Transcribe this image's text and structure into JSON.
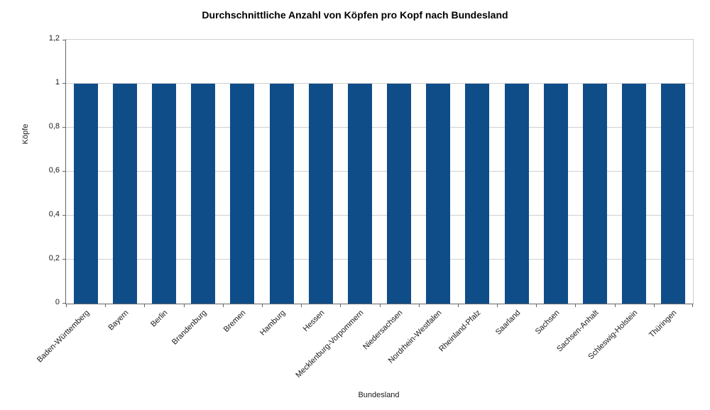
{
  "chart_data": {
    "type": "bar",
    "title": "Durchschnittliche Anzahl von Köpfen pro Kopf nach Bundesland",
    "xlabel": "Bundesland",
    "ylabel": "Köpfe",
    "categories": [
      "Baden-Württemberg",
      "Bayern",
      "Berlin",
      "Brandenburg",
      "Bremen",
      "Hamburg",
      "Hessen",
      "Mecklenburg-Vorpommern",
      "Niedersachsen",
      "Nordrhein-Westfalen",
      "Rheinland-Pfalz",
      "Saarland",
      "Sachsen",
      "Sachsen-Anhalt",
      "Schleswig-Holstein",
      "Thüringen"
    ],
    "values": [
      1,
      1,
      1,
      1,
      1,
      1,
      1,
      1,
      1,
      1,
      1,
      1,
      1,
      1,
      1,
      1
    ],
    "ylim": [
      0,
      1.2
    ],
    "yticks": [
      {
        "label": "0",
        "value": 0
      },
      {
        "label": "0,2",
        "value": 0.2
      },
      {
        "label": "0,4",
        "value": 0.4
      },
      {
        "label": "0,6",
        "value": 0.6
      },
      {
        "label": "0,8",
        "value": 0.8
      },
      {
        "label": "1",
        "value": 1
      },
      {
        "label": "1,2",
        "value": 1.2
      }
    ],
    "grid": true,
    "legend": "none",
    "colors": {
      "bar": "#0f4d89",
      "gridline": "#cfcfcf",
      "axis": "#666666",
      "text": "#1a1a1a"
    }
  }
}
